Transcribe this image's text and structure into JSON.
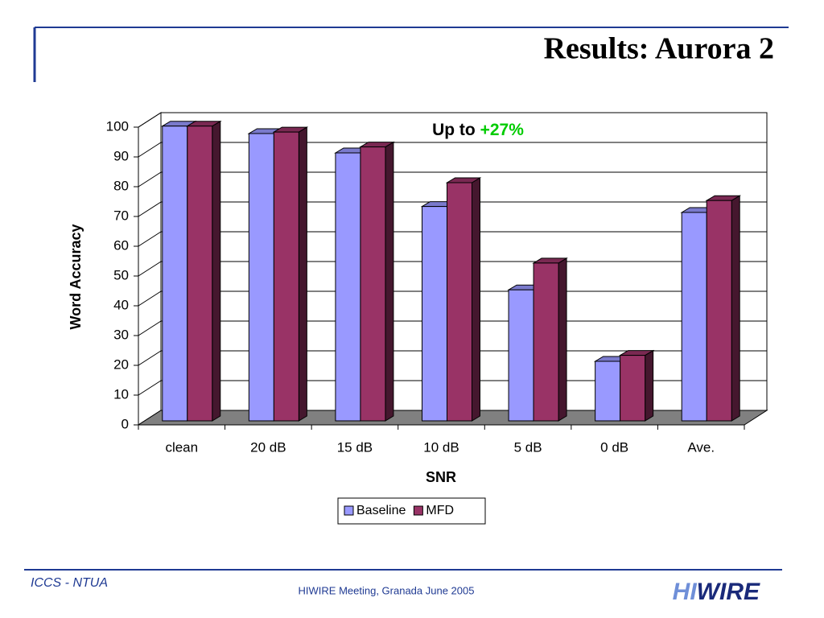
{
  "slide": {
    "title": "Results: Aurora 2",
    "footer_left": "ICCS - NTUA",
    "footer_center": "HIWIRE Meeting, Granada June 2005",
    "logo": [
      "HI",
      "WIRE"
    ]
  },
  "chart_data": {
    "type": "bar3d",
    "annotation": "Up to",
    "annotation_highlight": "+27%",
    "x_label": "SNR",
    "y_label": "Word Accuracy",
    "categories": [
      "clean",
      "20 dB",
      "15 dB",
      "10 dB",
      "5 dB",
      "0 dB",
      "Ave."
    ],
    "series": [
      {
        "name": "Baseline",
        "color": "#9999ff",
        "values": [
          99,
          96.5,
          90,
          72,
          44,
          20,
          70
        ]
      },
      {
        "name": "MFD",
        "color": "#993366",
        "values": [
          99,
          97,
          92,
          80,
          53,
          22,
          74
        ]
      }
    ],
    "ylim": [
      0,
      100
    ],
    "yticks": [
      0,
      10,
      20,
      30,
      40,
      50,
      60,
      70,
      80,
      90,
      100
    ],
    "grid": true,
    "legend": "bottom"
  }
}
